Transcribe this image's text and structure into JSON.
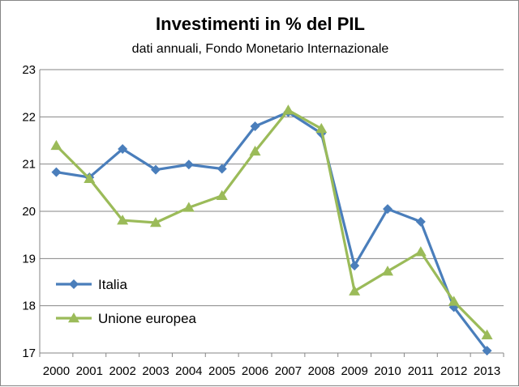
{
  "chart_data": {
    "type": "line",
    "title": "Investimenti in % del PIL",
    "subtitle": "dati annuali, Fondo Monetario Internazionale",
    "xlabel": "",
    "ylabel": "",
    "x": [
      "2000",
      "2001",
      "2002",
      "2003",
      "2004",
      "2005",
      "2006",
      "2007",
      "2008",
      "2009",
      "2010",
      "2011",
      "2012",
      "2013"
    ],
    "ylim": [
      17,
      23
    ],
    "yticks": [
      17,
      18,
      19,
      20,
      21,
      22,
      23
    ],
    "grid": true,
    "legend_position": "bottom-left",
    "series": [
      {
        "name": "Italia",
        "color": "#4a7ebb",
        "marker": "diamond",
        "values": [
          20.83,
          20.72,
          21.32,
          20.88,
          20.99,
          20.9,
          21.8,
          22.1,
          21.65,
          18.85,
          20.05,
          19.78,
          17.97,
          17.05
        ]
      },
      {
        "name": "Unione europea",
        "color": "#9bbb59",
        "marker": "triangle",
        "values": [
          21.39,
          20.69,
          19.81,
          19.76,
          20.08,
          20.33,
          21.27,
          22.14,
          21.75,
          18.31,
          18.73,
          19.14,
          18.09,
          17.38
        ]
      }
    ]
  }
}
